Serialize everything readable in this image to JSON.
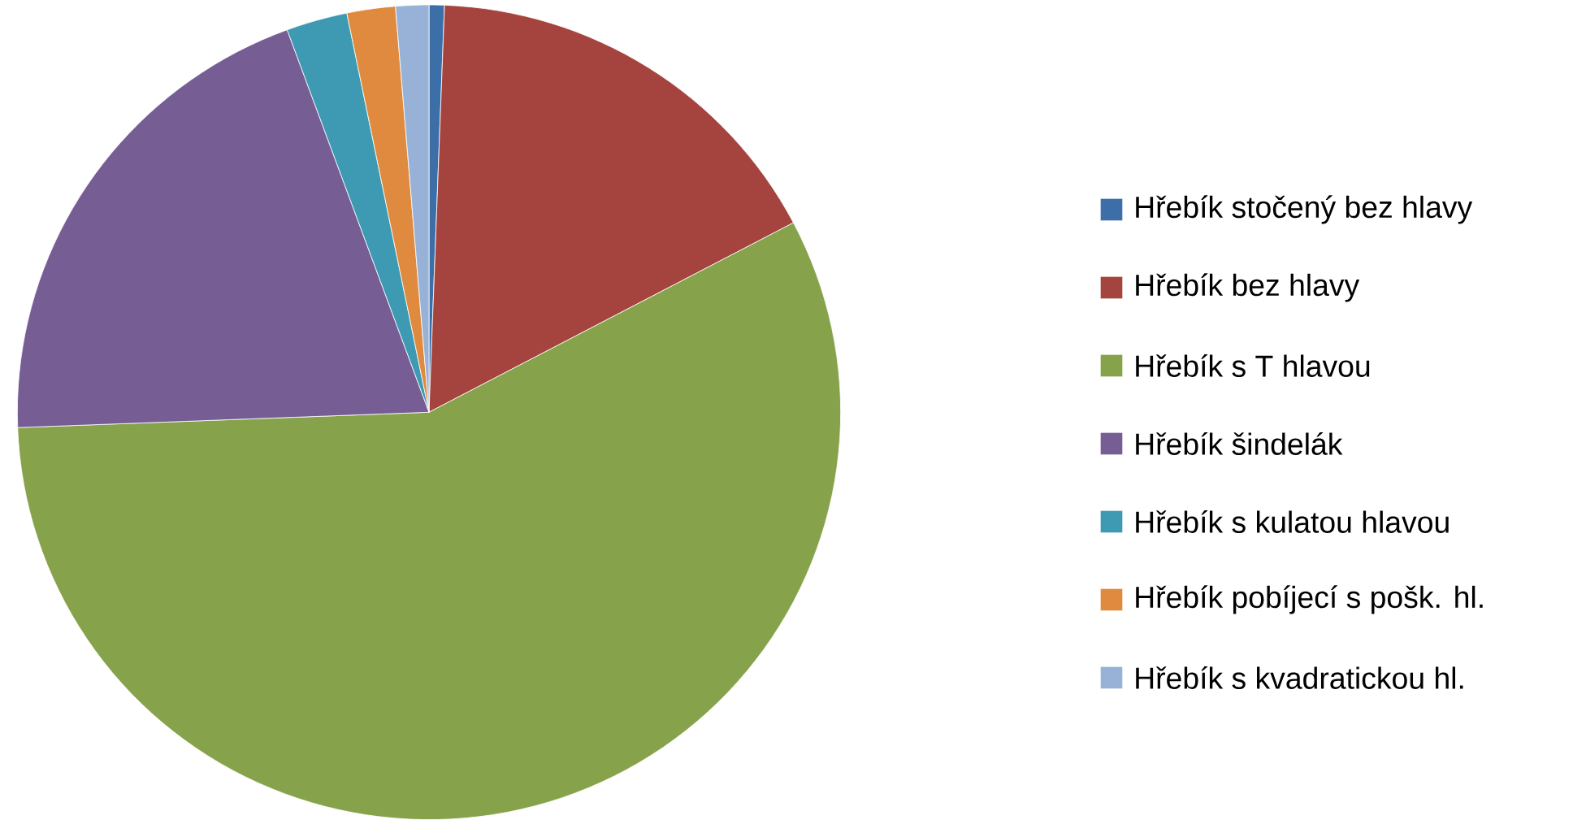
{
  "chart_data": {
    "type": "pie",
    "categories": [
      "Hřebík stočený bez hlavy",
      "Hřebík bez hlavy",
      "Hřebík s T hlavou",
      "Hřebík šindelák",
      "Hřebík s kulatou hlavou",
      "Hřebík pobíjecí s pošk. hl.",
      "Hřebík s kvadratickou hl."
    ],
    "values": [
      0.6,
      16.7,
      57.1,
      20.0,
      2.4,
      1.9,
      1.3
    ],
    "colors": [
      "#3c6fa8",
      "#a5443f",
      "#86a24b",
      "#765e94",
      "#3e99b3",
      "#df8a3e",
      "#97b2d6"
    ],
    "legend": "right"
  }
}
